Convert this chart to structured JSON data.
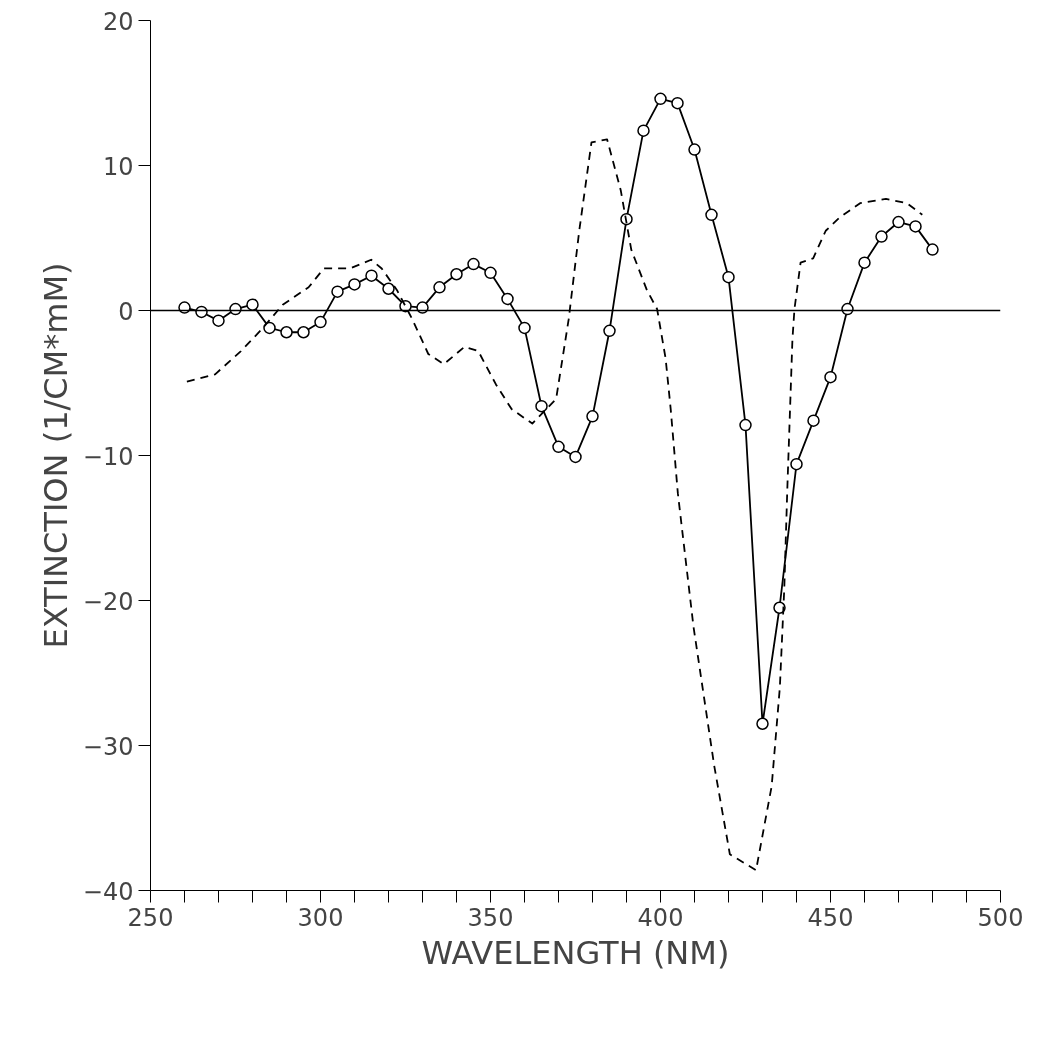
{
  "chart_data": {
    "type": "line",
    "xlabel": "WAVELENGTH (NM)",
    "ylabel": "EXTINCTION (1/CM*mM)",
    "xlim": [
      250,
      500
    ],
    "ylim": [
      -40,
      20
    ],
    "xticks": [
      250,
      {
        "value": 260,
        "label": null
      },
      {
        "value": 270,
        "label": null
      },
      {
        "value": 280,
        "label": null
      },
      {
        "value": 290,
        "label": null
      },
      300,
      {
        "value": 310,
        "label": null
      },
      {
        "value": 320,
        "label": null
      },
      {
        "value": 330,
        "label": null
      },
      {
        "value": 340,
        "label": null
      },
      350,
      {
        "value": 360,
        "label": null
      },
      {
        "value": 370,
        "label": null
      },
      {
        "value": 380,
        "label": null
      },
      {
        "value": 390,
        "label": null
      },
      400,
      {
        "value": 410,
        "label": null
      },
      {
        "value": 420,
        "label": null
      },
      {
        "value": 430,
        "label": null
      },
      {
        "value": 440,
        "label": null
      },
      450,
      {
        "value": 460,
        "label": null
      },
      {
        "value": 470,
        "label": null
      },
      {
        "value": 480,
        "label": null
      },
      {
        "value": 490,
        "label": null
      },
      500
    ],
    "yticks": [
      -40,
      -30,
      -20,
      -10,
      0,
      10,
      20
    ],
    "grid": false,
    "ref_lines": [
      {
        "axis": "y",
        "value": 0,
        "color": "#000000",
        "line_style": "solid"
      }
    ],
    "series": [
      {
        "color": "#000000",
        "marker": "circle",
        "line_style": "solid",
        "x": [
          260,
          265,
          270,
          275,
          280,
          285,
          290,
          295,
          300,
          305,
          310,
          315,
          320,
          325,
          330,
          335,
          340,
          345,
          350,
          355,
          360,
          365,
          370,
          375,
          380,
          385,
          390,
          395,
          400,
          405,
          410,
          415,
          420,
          425,
          430,
          435,
          440,
          445,
          450,
          455,
          460,
          465,
          470,
          475,
          480
        ],
        "values": [
          0.2,
          -0.1,
          -0.7,
          0.1,
          0.4,
          -1.2,
          -1.5,
          -1.5,
          -0.8,
          1.3,
          1.8,
          2.4,
          1.5,
          0.3,
          0.2,
          1.6,
          2.5,
          3.2,
          2.6,
          0.8,
          -1.2,
          -6.6,
          -9.4,
          -10.1,
          -7.3,
          -1.4,
          6.3,
          12.4,
          14.6,
          14.3,
          11.1,
          6.6,
          2.3,
          -7.9,
          -28.5,
          -20.5,
          -10.6,
          -7.6,
          -4.6,
          0.1,
          3.3,
          5.1,
          6.1,
          5.8,
          4.2
        ]
      },
      {
        "color": "#000000",
        "marker": "none",
        "line_style": "dashed",
        "x": [
          260.7,
          269,
          276.6,
          282.7,
          288.9,
          296.5,
          301,
          308.7,
          314.9,
          318,
          322.5,
          327,
          331.7,
          336.3,
          342.4,
          346.4,
          351.6,
          356.2,
          362.3,
          369.3,
          373,
          376.1,
          379.7,
          384.3,
          388.3,
          391.4,
          396,
          399,
          401.5,
          403,
          405.1,
          409.7,
          415.8,
          420.4,
          428.1,
          432.7,
          435.1,
          436.4,
          437.3,
          438.8,
          439.4,
          441.2,
          444.9,
          448.6,
          452.6,
          458.7,
          466.3,
          472.5,
          477
        ],
        "values": [
          -4.9,
          -4.4,
          -2.8,
          -1.3,
          0.4,
          1.6,
          2.9,
          2.9,
          3.5,
          2.9,
          1.4,
          -0.6,
          -3.0,
          -3.7,
          -2.5,
          -2.8,
          -5.1,
          -6.8,
          -7.8,
          -6.1,
          -0.6,
          5.5,
          11.6,
          11.8,
          8.3,
          4.2,
          1.4,
          0.1,
          -3.3,
          -6.8,
          -12.6,
          -21.8,
          -31.4,
          -37.5,
          -38.6,
          -32.8,
          -26,
          -19.2,
          -12.3,
          -2,
          0.1,
          3.3,
          3.6,
          5.5,
          6.4,
          7.4,
          7.7,
          7.4,
          6.6
        ]
      }
    ]
  }
}
